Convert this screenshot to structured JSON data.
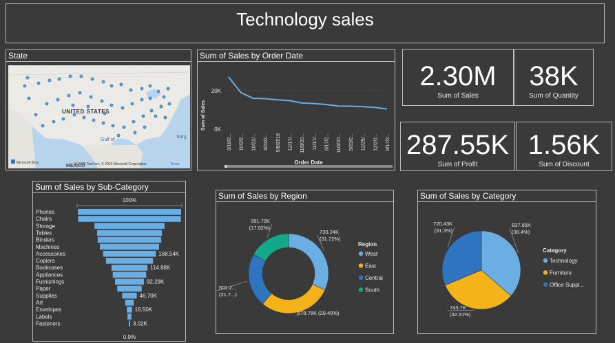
{
  "title": "Technology sales",
  "map": {
    "title": "State",
    "country_label": "UNITED STATES",
    "gulf_label": "Gulf of",
    "mexico_label": "MEXICO",
    "sarg_label": "Sarg",
    "attribution": "© 2025 TomTom, © 2025 Microsoft Corporation",
    "terms": "Terms",
    "brand": "Microsoft Bing"
  },
  "line": {
    "title": "Sum of Sales by Order Date",
    "chart_data": {
      "type": "line",
      "x": [
        "3/18/2...",
        "10/2/2...",
        "10/22/...",
        "3/23/2...",
        "9/8/2018",
        "12/17/...",
        "11/8/20...",
        "11/17/...",
        "9/17/2...",
        "11/4/20...",
        "5/23/2...",
        "12/25/...",
        "12/2/2...",
        "8/17/2..."
      ],
      "values": [
        27000,
        19000,
        16000,
        15800,
        15200,
        14800,
        13600,
        13300,
        12800,
        12000,
        11900,
        11700,
        11300,
        10500
      ],
      "xlabel": "Order Date",
      "ylabel": "Sum of Sales",
      "yticks": [
        "20K",
        "0K"
      ],
      "ylim": [
        0,
        32000
      ],
      "color": "#6aaee3"
    }
  },
  "kpis": [
    {
      "value": "2.30M",
      "label": "Sum of Sales"
    },
    {
      "value": "38K",
      "label": "Sum of Quantity"
    },
    {
      "value": "287.55K",
      "label": "Sum of Profit"
    },
    {
      "value": "1.56K",
      "label": "Sum of Discount"
    }
  ],
  "funnel": {
    "title": "Sum of Sales by Sub-Category",
    "chart_data": {
      "type": "bar",
      "orientation": "funnel",
      "top_label": "100%",
      "bottom_label": "0.9%",
      "categories": [
        "Phones",
        "Chairs",
        "Storage",
        "Tables",
        "Binders",
        "Machines",
        "Accessories",
        "Copiers",
        "Bookcases",
        "Appliances",
        "Furnishings",
        "Paper",
        "Supplies",
        "Art",
        "Envelopes",
        "Labels",
        "Fasteners"
      ],
      "values": [
        330000,
        328000,
        224000,
        207000,
        203000,
        189000,
        168540,
        150000,
        114880,
        107000,
        92290,
        78000,
        46700,
        27000,
        16500,
        12500,
        3020
      ],
      "data_labels": [
        "",
        "",
        "",
        "",
        "",
        "",
        "168.54K",
        "",
        "114.88K",
        "",
        "92.29K",
        "",
        "46.70K",
        "",
        "16.50K",
        "",
        "3.02K"
      ],
      "color": "#6aaee3"
    }
  },
  "donut": {
    "title": "Sum of Sales by Region",
    "legend_title": "Region",
    "chart_data": {
      "type": "pie",
      "style": "donut",
      "categories": [
        "West",
        "East",
        "Central",
        "South"
      ],
      "values": [
        730240,
        678780,
        501200,
        391720
      ],
      "labels": [
        "730.24K (31.72%)",
        "678.78K (29.49%)",
        "501.2... (21.7...)",
        "391.72K (17.02%)"
      ],
      "colors": [
        "#6aaee3",
        "#f5b31a",
        "#2f74c0",
        "#13a88a"
      ],
      "legend": "right"
    }
  },
  "pie": {
    "title": "Sum of Sales by Category",
    "legend_title": "Category",
    "chart_data": {
      "type": "pie",
      "categories": [
        "Technology",
        "Furniture",
        "Office Suppl..."
      ],
      "values": [
        837850,
        743700,
        720430
      ],
      "labels": [
        "837.85K (36.4%)",
        "743.7K (32.31%)",
        "720.43K (31.3%)"
      ],
      "colors": [
        "#6aaee3",
        "#f5b31a",
        "#2f74c0"
      ],
      "legend": "right"
    }
  }
}
